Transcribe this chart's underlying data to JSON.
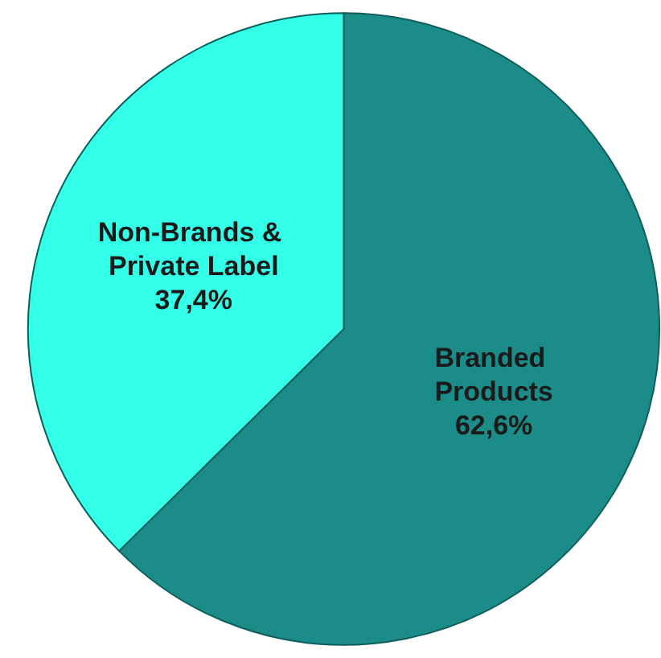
{
  "chart_data": {
    "type": "pie",
    "categories": [
      "Branded Products",
      "Non-Brands & Private Label"
    ],
    "values": [
      62.6,
      37.4
    ],
    "value_labels": [
      "62,6%",
      "37,4%"
    ],
    "colors": [
      "#1b8c88",
      "#33ffe8"
    ],
    "legend": false
  }
}
